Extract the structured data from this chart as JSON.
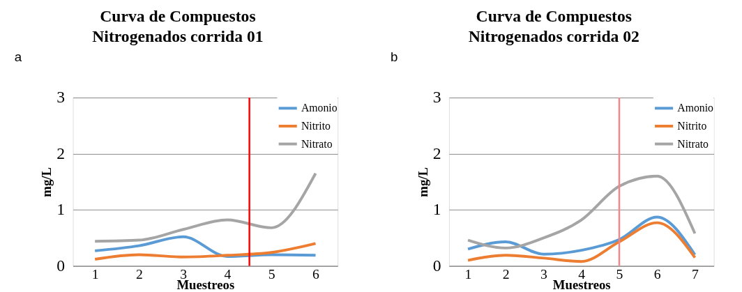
{
  "chart_data": [
    {
      "type": "line",
      "title": "Curva de Compuestos Nitrogenados corrida 01",
      "xlabel": "Muestreos",
      "ylabel": "mg/L",
      "annotations": [
        "a"
      ],
      "x": [
        1,
        2,
        3,
        4,
        5,
        6
      ],
      "xlim": [
        0.5,
        6.5
      ],
      "xticks": [
        1,
        2,
        3,
        4,
        5,
        6
      ],
      "ylim": [
        0,
        3
      ],
      "yticks": [
        0,
        1,
        2,
        3
      ],
      "grid": "y",
      "legend": "top right",
      "marker": "none",
      "series": [
        {
          "name": "Amonio",
          "color": "#5b9bd5",
          "values": [
            0.27,
            0.36,
            0.52,
            0.17,
            0.2,
            0.19
          ]
        },
        {
          "name": "Nitrito",
          "color": "#ed7d31",
          "values": [
            0.12,
            0.2,
            0.16,
            0.19,
            0.24,
            0.4
          ]
        },
        {
          "name": "Nitrato",
          "color": "#a5a5a5",
          "values": [
            0.44,
            0.46,
            0.65,
            0.82,
            0.68,
            1.65
          ]
        }
      ],
      "ref_lines": [
        {
          "axis": "x",
          "value": 4.5,
          "color": "#ff0000"
        }
      ]
    },
    {
      "type": "line",
      "title": "Curva de Compuestos Nitrogenados corrida 02",
      "xlabel": "Muestreos",
      "ylabel": "mg/L",
      "annotations": [
        "b"
      ],
      "x": [
        1,
        2,
        3,
        4,
        5,
        6,
        7
      ],
      "xlim": [
        0.5,
        7.5
      ],
      "xticks": [
        1,
        2,
        3,
        4,
        5,
        6,
        7
      ],
      "ylim": [
        0,
        3
      ],
      "yticks": [
        0,
        1,
        2,
        3
      ],
      "grid": "y",
      "legend": "top right",
      "marker": "none",
      "series": [
        {
          "name": "Amonio",
          "color": "#5b9bd5",
          "values": [
            0.3,
            0.43,
            0.21,
            0.28,
            0.47,
            0.87,
            0.2
          ]
        },
        {
          "name": "Nitrito",
          "color": "#ed7d31",
          "values": [
            0.1,
            0.19,
            0.14,
            0.08,
            0.43,
            0.77,
            0.15
          ]
        },
        {
          "name": "Nitrato",
          "color": "#a5a5a5",
          "values": [
            0.46,
            0.32,
            0.5,
            0.82,
            1.42,
            1.6,
            0.58
          ]
        }
      ],
      "ref_lines": [
        {
          "axis": "x",
          "value": 5,
          "color": "#f4858a"
        }
      ]
    }
  ]
}
